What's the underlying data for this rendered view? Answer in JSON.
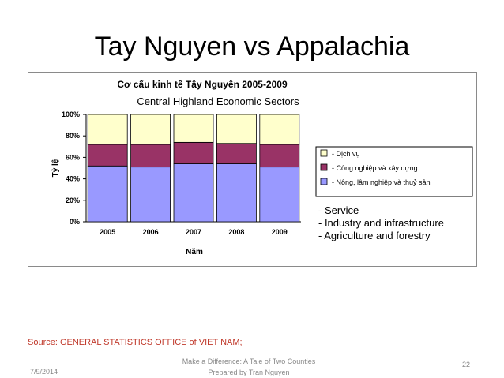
{
  "slide": {
    "title": "Tay Nguyen vs Appalachia",
    "source": "Source: GENERAL STATISTICS OFFICE of VIET NAM;",
    "footer_date": "7/9/2014",
    "footer_line1": "Make a Difference: A Tale of Two Counties",
    "footer_line2": "Prepared by Tran Nguyen",
    "page_number": "22"
  },
  "chart_data": {
    "type": "bar",
    "stacked": true,
    "title": "Cơ cấu kinh tế Tây Nguyên 2005-2009",
    "subtitle": "Central Highland Economic Sectors",
    "xlabel": "Năm",
    "ylabel": "Tỷ lệ",
    "categories": [
      "2005",
      "2006",
      "2007",
      "2008",
      "2009"
    ],
    "y_ticks": [
      "0%",
      "20%",
      "40%",
      "60%",
      "80%",
      "100%"
    ],
    "ylim": [
      0,
      100
    ],
    "grid": false,
    "legend_position": "right",
    "series": [
      {
        "name": "- Nông, lâm nghiệp và thuỷ sản",
        "values": [
          52,
          51,
          54,
          54,
          51
        ],
        "color": "#9999ff"
      },
      {
        "name": "- Công nghiệp và xây dựng",
        "values": [
          20,
          21,
          20,
          19,
          21
        ],
        "color": "#993366"
      },
      {
        "name": "- Dịch vụ",
        "values": [
          28,
          28,
          26,
          27,
          28
        ],
        "color": "#ffffcc"
      }
    ],
    "translation_lines": [
      "- Service",
      "- Industry and infrastructure",
      "- Agriculture and forestry"
    ]
  }
}
